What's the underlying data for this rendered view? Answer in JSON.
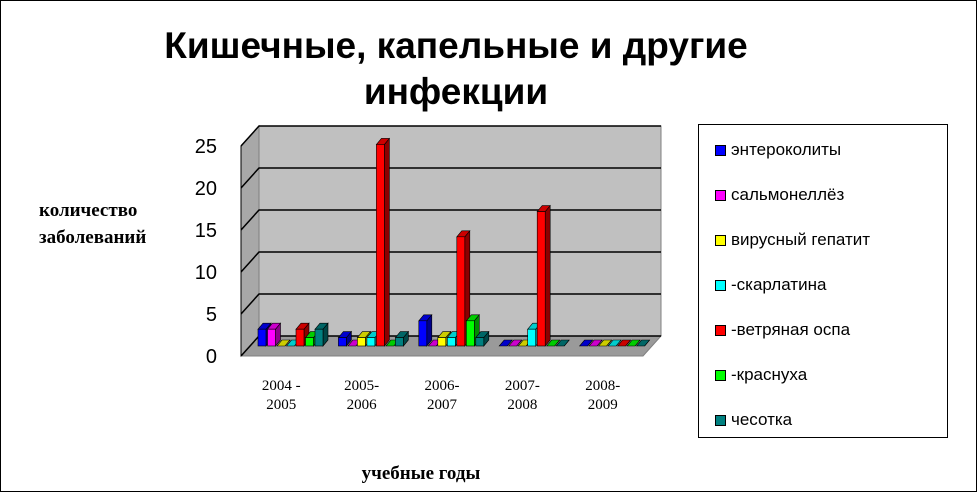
{
  "chart_data": {
    "type": "bar3d",
    "title": "Кишечные, капельные и другие инфекции",
    "y_label": "количество заболеваний",
    "x_label": "учебные годы",
    "categories": [
      "2004 - 2005",
      "2005-2006",
      "2006-2007",
      "2007-2008",
      "2008-2009"
    ],
    "series": [
      {
        "name": "энтероколиты",
        "color": "#0000ff",
        "values": [
          2,
          1,
          3,
          0,
          0
        ]
      },
      {
        "name": "сальмонеллёз",
        "color": "#ff00ff",
        "values": [
          2,
          0,
          0,
          0,
          0
        ]
      },
      {
        "name": "вирусный гепатит",
        "color": "#ffff00",
        "values": [
          0,
          1,
          1,
          0,
          0
        ]
      },
      {
        "name": "-скарлатина",
        "color": "#00ffff",
        "values": [
          0,
          1,
          1,
          2,
          0
        ]
      },
      {
        "name": "-ветряная оспа",
        "color": "#ff0000",
        "values": [
          2,
          24,
          13,
          16,
          0
        ]
      },
      {
        "name": "-краснуха",
        "color": "#00ff00",
        "values": [
          1,
          0,
          3,
          0,
          0
        ]
      },
      {
        "name": "чесотка",
        "color": "#008080",
        "values": [
          2,
          1,
          1,
          0,
          0
        ]
      }
    ],
    "ylim": [
      0,
      25
    ],
    "yticks": [
      0,
      5,
      10,
      15,
      20,
      25
    ],
    "grid": true,
    "legend": "right"
  }
}
